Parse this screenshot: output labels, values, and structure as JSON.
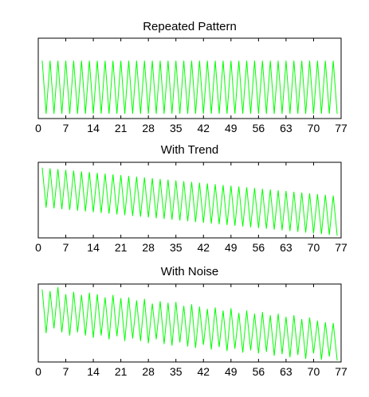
{
  "chart_data": [
    {
      "type": "line",
      "title": "Repeated Pattern",
      "xlim": [
        0,
        77
      ],
      "xticks": [
        0,
        7,
        14,
        21,
        28,
        35,
        42,
        49,
        56,
        63,
        70,
        77
      ],
      "grid": false,
      "series": [
        {
          "color": "#00ff00",
          "x": [
            1,
            2,
            3,
            4,
            5,
            6,
            7,
            8,
            9,
            10,
            11,
            12,
            13,
            14,
            15,
            16,
            17,
            18,
            19,
            20,
            21,
            22,
            23,
            24,
            25,
            26,
            27,
            28,
            29,
            30,
            31,
            32,
            33,
            34,
            35,
            36,
            37,
            38,
            39,
            40,
            41,
            42,
            43,
            44,
            45,
            46,
            47,
            48,
            49,
            50,
            51,
            52,
            53,
            54,
            55,
            56,
            57,
            58,
            59,
            60,
            61,
            62,
            63,
            64,
            65,
            66,
            67,
            68,
            69,
            70,
            71,
            72,
            73,
            74,
            75,
            76
          ],
          "y": [
            0.72,
            0.06,
            0.72,
            0.06,
            0.72,
            0.06,
            0.72,
            0.06,
            0.72,
            0.06,
            0.72,
            0.06,
            0.72,
            0.06,
            0.72,
            0.06,
            0.72,
            0.06,
            0.72,
            0.06,
            0.72,
            0.06,
            0.72,
            0.06,
            0.72,
            0.06,
            0.72,
            0.06,
            0.72,
            0.06,
            0.72,
            0.06,
            0.72,
            0.06,
            0.72,
            0.06,
            0.72,
            0.06,
            0.72,
            0.06,
            0.72,
            0.06,
            0.72,
            0.06,
            0.72,
            0.06,
            0.72,
            0.06,
            0.72,
            0.06,
            0.72,
            0.06,
            0.72,
            0.06,
            0.72,
            0.06,
            0.72,
            0.06,
            0.72,
            0.06,
            0.72,
            0.06,
            0.72,
            0.06,
            0.72,
            0.06,
            0.72,
            0.06,
            0.72,
            0.06,
            0.72,
            0.06,
            0.72,
            0.06,
            0.72,
            0.06
          ]
        }
      ]
    },
    {
      "type": "line",
      "title": "With Trend",
      "xlim": [
        0,
        77
      ],
      "xticks": [
        0,
        7,
        14,
        21,
        28,
        35,
        42,
        49,
        56,
        63,
        70,
        77
      ],
      "grid": false,
      "series": [
        {
          "color": "#00ff00",
          "x": [
            1,
            2,
            3,
            4,
            5,
            6,
            7,
            8,
            9,
            10,
            11,
            12,
            13,
            14,
            15,
            16,
            17,
            18,
            19,
            20,
            21,
            22,
            23,
            24,
            25,
            26,
            27,
            28,
            29,
            30,
            31,
            32,
            33,
            34,
            35,
            36,
            37,
            38,
            39,
            40,
            41,
            42,
            43,
            44,
            45,
            46,
            47,
            48,
            49,
            50,
            51,
            52,
            53,
            54,
            55,
            56,
            57,
            58,
            59,
            60,
            61,
            62,
            63,
            64,
            65,
            66,
            67,
            68,
            69,
            70,
            71,
            72,
            73,
            74,
            75,
            76
          ],
          "y": [
            0.93,
            0.4,
            0.92,
            0.39,
            0.91,
            0.38,
            0.9,
            0.37,
            0.89,
            0.36,
            0.88,
            0.35,
            0.87,
            0.34,
            0.86,
            0.33,
            0.85,
            0.32,
            0.84,
            0.31,
            0.83,
            0.3,
            0.82,
            0.29,
            0.81,
            0.28,
            0.8,
            0.27,
            0.79,
            0.26,
            0.78,
            0.25,
            0.77,
            0.24,
            0.76,
            0.23,
            0.75,
            0.22,
            0.74,
            0.21,
            0.73,
            0.2,
            0.72,
            0.19,
            0.71,
            0.18,
            0.7,
            0.17,
            0.69,
            0.16,
            0.68,
            0.15,
            0.67,
            0.14,
            0.66,
            0.13,
            0.65,
            0.12,
            0.64,
            0.11,
            0.63,
            0.1,
            0.62,
            0.09,
            0.61,
            0.08,
            0.6,
            0.07,
            0.59,
            0.06,
            0.58,
            0.05,
            0.57,
            0.04,
            0.56,
            0.03
          ]
        }
      ]
    },
    {
      "type": "line",
      "title": "With Noise",
      "xlim": [
        0,
        77
      ],
      "xticks": [
        0,
        7,
        14,
        21,
        28,
        35,
        42,
        49,
        56,
        63,
        70,
        77
      ],
      "grid": false,
      "series": [
        {
          "color": "#00ff00",
          "x": [
            1,
            2,
            3,
            4,
            5,
            6,
            7,
            8,
            9,
            10,
            11,
            12,
            13,
            14,
            15,
            16,
            17,
            18,
            19,
            20,
            21,
            22,
            23,
            24,
            25,
            26,
            27,
            28,
            29,
            30,
            31,
            32,
            33,
            34,
            35,
            36,
            37,
            38,
            39,
            40,
            41,
            42,
            43,
            44,
            45,
            46,
            47,
            48,
            49,
            50,
            51,
            52,
            53,
            54,
            55,
            56,
            57,
            58,
            59,
            60,
            61,
            62,
            63,
            64,
            65,
            66,
            67,
            68,
            69,
            70,
            71,
            72,
            73,
            74,
            75,
            76
          ],
          "y": [
            0.93,
            0.37,
            0.91,
            0.43,
            0.96,
            0.38,
            0.87,
            0.34,
            0.9,
            0.38,
            0.86,
            0.34,
            0.89,
            0.31,
            0.87,
            0.34,
            0.83,
            0.29,
            0.86,
            0.33,
            0.82,
            0.27,
            0.83,
            0.3,
            0.79,
            0.27,
            0.81,
            0.24,
            0.75,
            0.29,
            0.78,
            0.23,
            0.76,
            0.21,
            0.77,
            0.25,
            0.72,
            0.2,
            0.74,
            0.18,
            0.71,
            0.22,
            0.68,
            0.16,
            0.7,
            0.19,
            0.66,
            0.14,
            0.69,
            0.17,
            0.63,
            0.12,
            0.66,
            0.15,
            0.62,
            0.11,
            0.64,
            0.13,
            0.6,
            0.08,
            0.62,
            0.1,
            0.58,
            0.06,
            0.6,
            0.09,
            0.55,
            0.04,
            0.57,
            0.11,
            0.53,
            0.03,
            0.51,
            0.07,
            0.5,
            0.02
          ]
        }
      ]
    }
  ]
}
